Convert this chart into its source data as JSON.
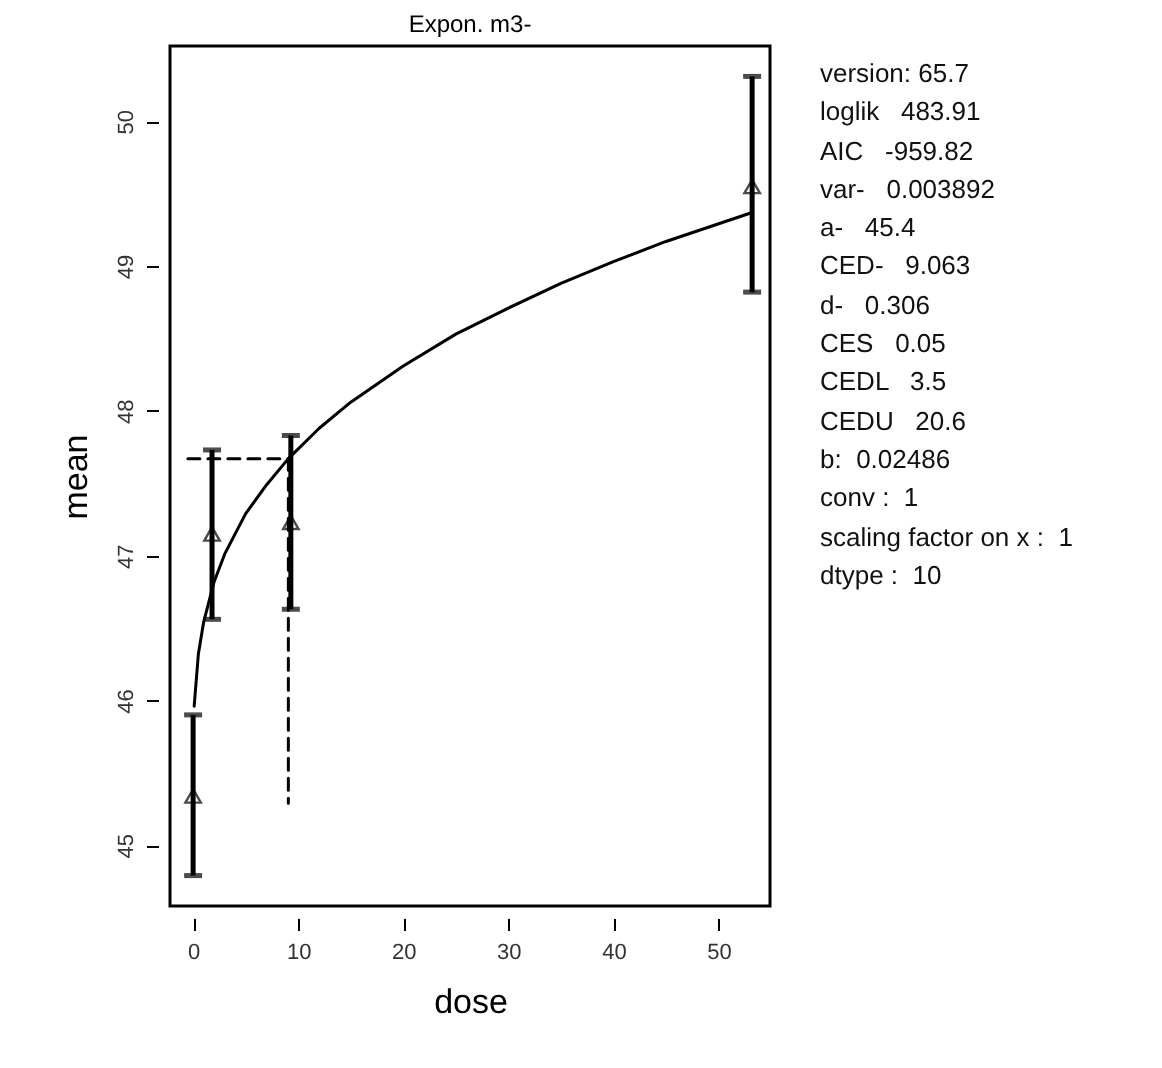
{
  "chart_data": {
    "type": "scatter",
    "title": "Expon. m3-",
    "xlabel": "dose",
    "ylabel": "mean",
    "xlim": [
      -2.2,
      54.9
    ],
    "ylim": [
      44.58,
      50.52
    ],
    "xticks": [
      0,
      10,
      20,
      30,
      40,
      50
    ],
    "yticks": [
      45,
      46,
      47,
      48,
      49,
      50
    ],
    "series": [
      {
        "marker": "triangle",
        "color": "#000000",
        "x": [
          0,
          1.8,
          9.3,
          53.2
        ],
        "values": [
          45.34,
          47.15,
          47.23,
          49.55
        ],
        "errors": [
          [
            44.79,
            45.9
          ],
          [
            46.56,
            47.73
          ],
          [
            46.63,
            47.83
          ],
          [
            48.82,
            50.31
          ]
        ]
      },
      {
        "type": "line",
        "color": "#000000",
        "x": [
          0.1,
          0.5,
          1,
          2,
          3,
          5,
          7,
          9.063,
          12,
          15,
          20,
          25,
          30,
          35,
          40,
          45,
          53.2
        ],
        "values": [
          45.96,
          46.32,
          46.54,
          46.82,
          47.01,
          47.29,
          47.49,
          47.67,
          47.88,
          48.06,
          48.31,
          48.53,
          48.71,
          48.88,
          49.03,
          49.17,
          49.37
        ]
      },
      {
        "type": "line",
        "color": "#000000",
        "line_style": "dashed",
        "x": [
          -0.5,
          9.063,
          9.063
        ],
        "values": [
          47.67,
          47.67,
          45.29
        ]
      }
    ],
    "annotations": [
      "version: 65.7",
      "loglik   483.91",
      "AIC   -959.82",
      "var-   0.003892",
      "a-   45.4",
      "CED-   9.063",
      "d-   0.306",
      "CES   0.05",
      "CEDL   3.5",
      "CEDU   20.6",
      "b:  0.02486",
      "conv :  1",
      "scaling factor on x :  1",
      "dtype :  10"
    ]
  }
}
